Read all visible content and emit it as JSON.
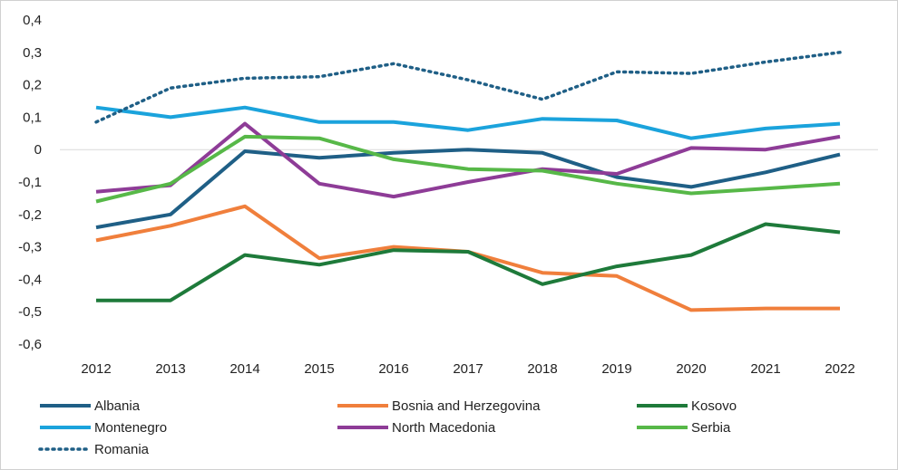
{
  "chart_data": {
    "type": "line",
    "title": "",
    "xlabel": "",
    "ylabel": "",
    "categories": [
      "2012",
      "2013",
      "2014",
      "2015",
      "2016",
      "2017",
      "2018",
      "2019",
      "2020",
      "2021",
      "2022"
    ],
    "ylim": [
      -0.6,
      0.4
    ],
    "yticks": [
      0.4,
      0.3,
      0.2,
      0.1,
      0,
      -0.1,
      -0.2,
      -0.3,
      -0.4,
      -0.5,
      -0.6
    ],
    "ytick_labels": [
      "0,4",
      "0,3",
      "0,2",
      "0,1",
      "0",
      "-0,1",
      "-0,2",
      "-0,3",
      "-0,4",
      "-0,5",
      "-0,6"
    ],
    "zero_line": true,
    "legend_position": "bottom",
    "series": [
      {
        "name": "Albania",
        "color": "#1f5f86",
        "dash": "solid",
        "values": [
          -0.24,
          -0.2,
          -0.005,
          -0.025,
          -0.01,
          0.0,
          -0.01,
          -0.085,
          -0.115,
          -0.07,
          -0.015
        ]
      },
      {
        "name": "Bosnia and Herzegovina",
        "color": "#f07f3c",
        "dash": "solid",
        "values": [
          -0.28,
          -0.235,
          -0.175,
          -0.335,
          -0.3,
          -0.315,
          -0.38,
          -0.39,
          -0.495,
          -0.49,
          -0.49
        ]
      },
      {
        "name": "Kosovo",
        "color": "#1e7a3a",
        "dash": "solid",
        "values": [
          -0.465,
          -0.465,
          -0.325,
          -0.355,
          -0.31,
          -0.315,
          -0.415,
          -0.36,
          -0.325,
          -0.23,
          -0.255
        ]
      },
      {
        "name": "Montenegro",
        "color": "#1ba3dc",
        "dash": "solid",
        "values": [
          0.13,
          0.1,
          0.13,
          0.085,
          0.085,
          0.06,
          0.095,
          0.09,
          0.035,
          0.065,
          0.08
        ]
      },
      {
        "name": "North Macedonia",
        "color": "#8e3c97",
        "dash": "solid",
        "values": [
          -0.13,
          -0.11,
          0.08,
          -0.105,
          -0.145,
          -0.1,
          -0.06,
          -0.075,
          0.005,
          0.0,
          0.04
        ]
      },
      {
        "name": "Serbia",
        "color": "#57b848",
        "dash": "solid",
        "values": [
          -0.16,
          -0.105,
          0.04,
          0.035,
          -0.03,
          -0.06,
          -0.065,
          -0.105,
          -0.135,
          -0.12,
          -0.105
        ]
      },
      {
        "name": "Romania",
        "color": "#1f5f86",
        "dash": "dotted",
        "values": [
          0.085,
          0.19,
          0.22,
          0.225,
          0.265,
          0.215,
          0.155,
          0.24,
          0.235,
          0.27,
          0.3
        ]
      }
    ]
  }
}
